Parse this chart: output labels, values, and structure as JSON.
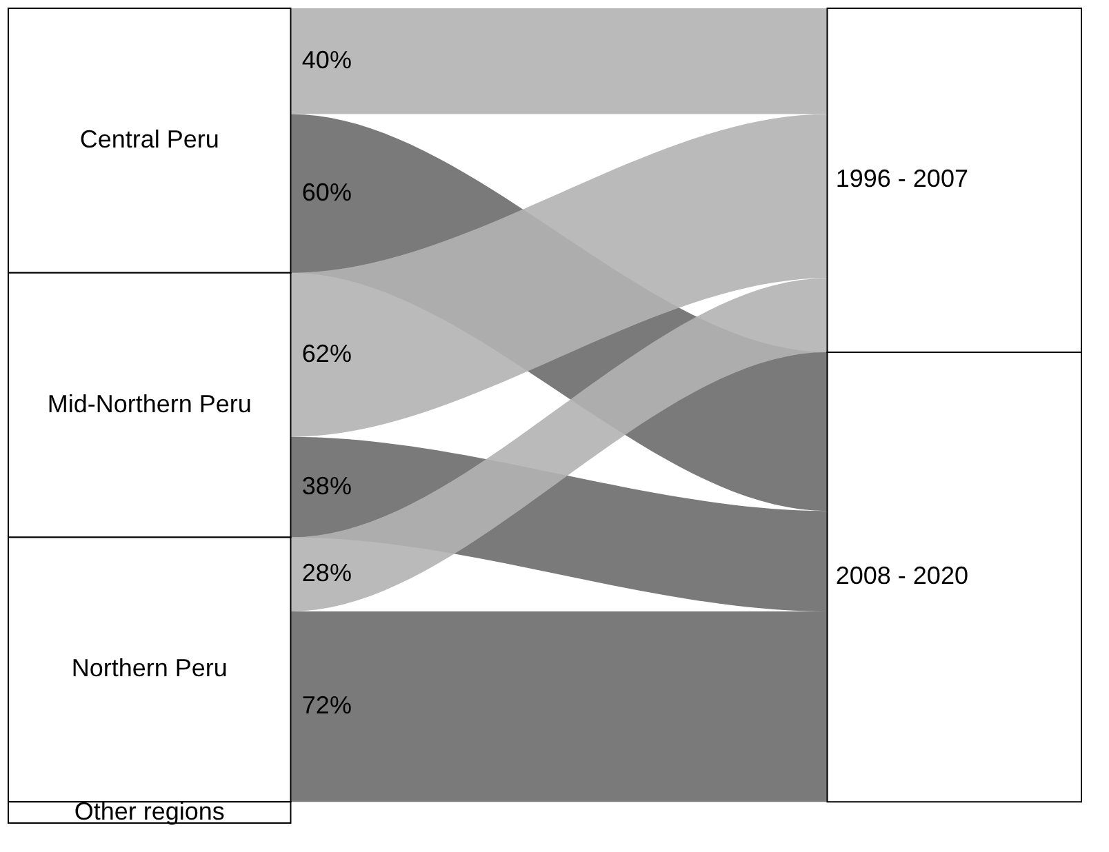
{
  "chart_data": {
    "type": "other",
    "categories": [
      "Central Peru",
      "Mid-Northern Peru",
      "Northern Peru",
      "Other regions"
    ],
    "series": [
      {
        "name": "1996 - 2007",
        "color": "#b3b3b3",
        "values": [
          40,
          62,
          28,
          null
        ],
        "value_labels": [
          "40%",
          "62%",
          "28%",
          null
        ]
      },
      {
        "name": "2008 - 2020",
        "color": "#6b6b6b",
        "values": [
          60,
          38,
          72,
          null
        ],
        "value_labels": [
          "60%",
          "38%",
          "72%",
          null
        ]
      }
    ]
  }
}
